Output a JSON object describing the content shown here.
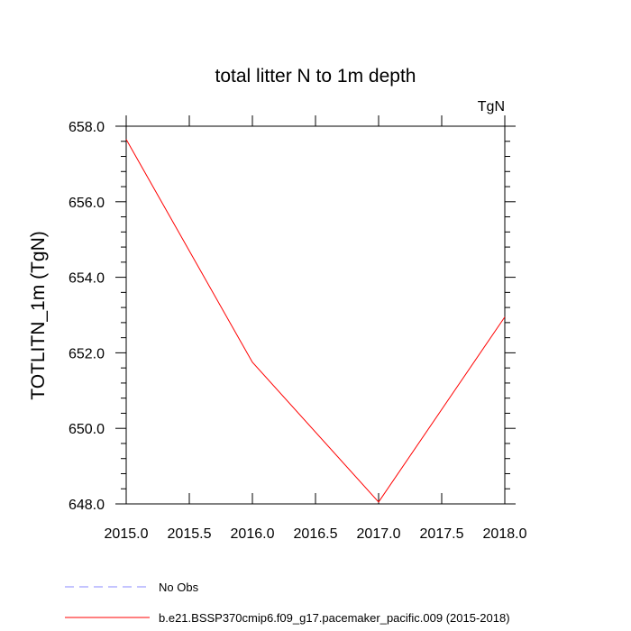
{
  "chart_data": {
    "type": "line",
    "title": "total litter N to 1m depth",
    "units_label": "TgN",
    "ylabel": "TOTLITN_1m  (TgN)",
    "xlabel": "",
    "xlim": [
      2015.0,
      2018.0
    ],
    "ylim": [
      648.0,
      658.0
    ],
    "x_ticks": [
      "2015.0",
      "2015.5",
      "2016.0",
      "2016.5",
      "2017.0",
      "2017.5",
      "2018.0"
    ],
    "y_ticks": [
      "648.0",
      "650.0",
      "652.0",
      "654.0",
      "656.0",
      "658.0"
    ],
    "grid": false,
    "legend_position": "bottom",
    "series": [
      {
        "name": "b.e21.BSSP370cmip6.f09_g17.pacemaker_pacific.009 (2015-2018)",
        "color": "#ff0000",
        "dash": "solid",
        "x": [
          2015,
          2016,
          2017,
          2018
        ],
        "y": [
          657.65,
          651.75,
          648.05,
          652.95
        ]
      },
      {
        "name": "No Obs",
        "color": "#8a8aff",
        "dash": "dashed",
        "x": [],
        "y": []
      }
    ]
  }
}
